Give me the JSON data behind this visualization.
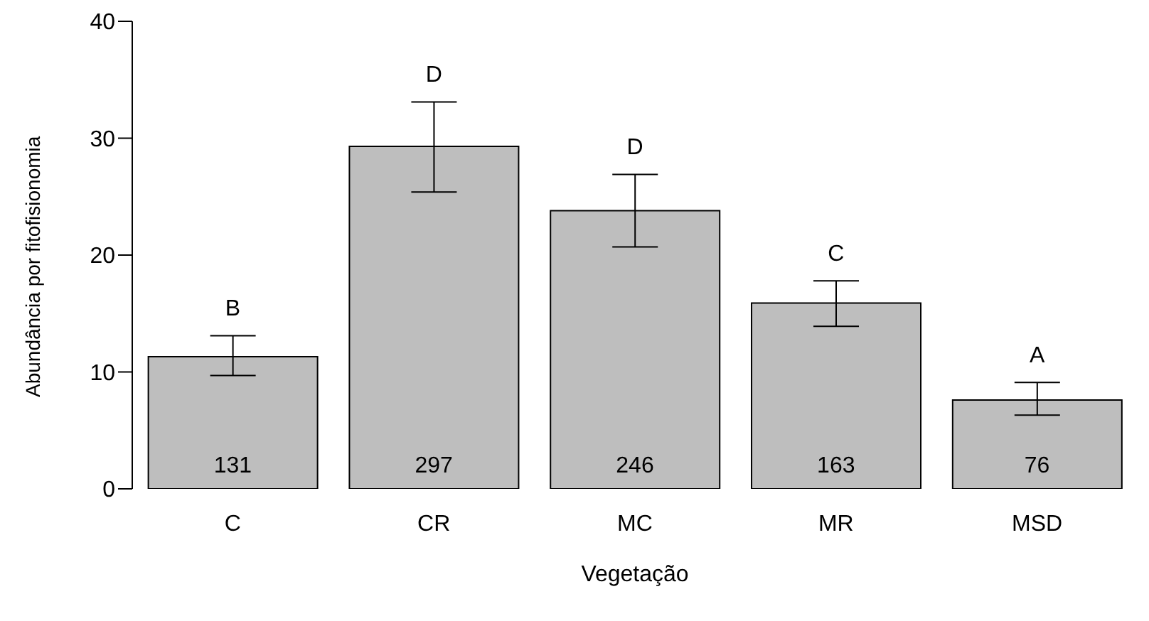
{
  "chart_data": {
    "type": "bar",
    "xlabel": "Vegetação",
    "ylabel": "Abundância por fitofisionomia",
    "categories": [
      "C",
      "CR",
      "MC",
      "MR",
      "MSD"
    ],
    "values": [
      11.3,
      29.3,
      23.8,
      15.9,
      7.6
    ],
    "errors": [
      [
        9.7,
        13.1
      ],
      [
        25.4,
        33.1
      ],
      [
        20.7,
        26.9
      ],
      [
        13.9,
        17.8
      ],
      [
        6.3,
        9.1
      ]
    ],
    "color": "#bebebe",
    "ylim": [
      0,
      40
    ],
    "yticks": [
      0,
      10,
      20,
      30,
      40
    ],
    "grid": false,
    "legend": false,
    "annotations": [
      "B",
      "D",
      "D",
      "C",
      "A",
      "131",
      "297",
      "246",
      "163",
      "76"
    ]
  }
}
